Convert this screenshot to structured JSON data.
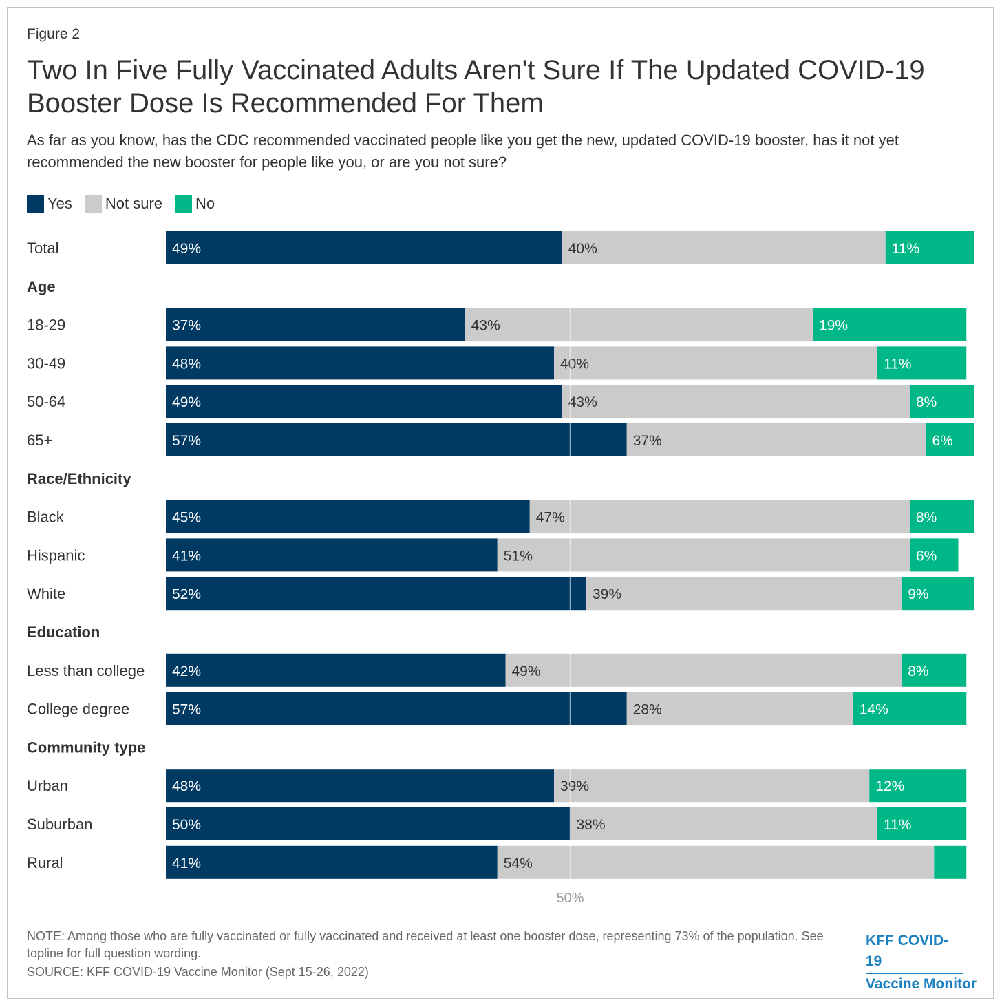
{
  "figure_label": "Figure 2",
  "title": "Two In Five Fully Vaccinated Adults Aren't Sure If The Updated COVID-19 Booster Dose Is Recommended For Them",
  "subtitle": "As far as you know, has the CDC recommended vaccinated people like you get the new, updated COVID-19 booster, has it not yet recommended the new booster for people like you, or are you not sure?",
  "legend": [
    {
      "label": "Yes",
      "color": "#003a63"
    },
    {
      "label": "Not sure",
      "color": "#cbcbcb"
    },
    {
      "label": "No",
      "color": "#00b887"
    }
  ],
  "chart_data": {
    "type": "bar",
    "orientation": "horizontal-stacked",
    "series_names": [
      "Yes",
      "Not sure",
      "No"
    ],
    "series_colors": [
      "#003a63",
      "#cbcbcb",
      "#00b887"
    ],
    "xlim": [
      0,
      100
    ],
    "x_ticks": [
      {
        "value": 50,
        "label": "50%"
      }
    ],
    "grid": false,
    "legend_position": "top-left",
    "rows": [
      {
        "kind": "bar",
        "label": "Total",
        "values": [
          49,
          40,
          11
        ],
        "labels": [
          "49%",
          "40%",
          "11%"
        ]
      },
      {
        "kind": "group",
        "label": "Age"
      },
      {
        "kind": "bar",
        "label": "18-29",
        "values": [
          37,
          43,
          19
        ],
        "labels": [
          "37%",
          "43%",
          "19%"
        ]
      },
      {
        "kind": "bar",
        "label": "30-49",
        "values": [
          48,
          40,
          11
        ],
        "labels": [
          "48%",
          "40%",
          "11%"
        ]
      },
      {
        "kind": "bar",
        "label": "50-64",
        "values": [
          49,
          43,
          8
        ],
        "labels": [
          "49%",
          "43%",
          "8%"
        ]
      },
      {
        "kind": "bar",
        "label": "65+",
        "values": [
          57,
          37,
          6
        ],
        "labels": [
          "57%",
          "37%",
          "6%"
        ]
      },
      {
        "kind": "group",
        "label": "Race/Ethnicity"
      },
      {
        "kind": "bar",
        "label": "Black",
        "values": [
          45,
          47,
          8
        ],
        "labels": [
          "45%",
          "47%",
          "8%"
        ]
      },
      {
        "kind": "bar",
        "label": "Hispanic",
        "values": [
          41,
          51,
          6
        ],
        "labels": [
          "41%",
          "51%",
          "6%"
        ]
      },
      {
        "kind": "bar",
        "label": "White",
        "values": [
          52,
          39,
          9
        ],
        "labels": [
          "52%",
          "39%",
          "9%"
        ]
      },
      {
        "kind": "group",
        "label": "Education"
      },
      {
        "kind": "bar",
        "label": "Less than college",
        "values": [
          42,
          49,
          8
        ],
        "labels": [
          "42%",
          "49%",
          "8%"
        ]
      },
      {
        "kind": "bar",
        "label": "College degree",
        "values": [
          57,
          28,
          14
        ],
        "labels": [
          "57%",
          "28%",
          "14%"
        ]
      },
      {
        "kind": "group",
        "label": "Community type"
      },
      {
        "kind": "bar",
        "label": "Urban",
        "values": [
          48,
          39,
          12
        ],
        "labels": [
          "48%",
          "39%",
          "12%"
        ]
      },
      {
        "kind": "bar",
        "label": "Suburban",
        "values": [
          50,
          38,
          11
        ],
        "labels": [
          "50%",
          "38%",
          "11%"
        ]
      },
      {
        "kind": "bar",
        "label": "Rural",
        "values": [
          41,
          54,
          4
        ],
        "labels": [
          "41%",
          "54%",
          ""
        ]
      }
    ]
  },
  "footer": {
    "note": "NOTE: Among those who are fully vaccinated or fully vaccinated and received at least one booster dose, representing 73% of the population. See topline for full question wording.",
    "source": "SOURCE: KFF COVID-19 Vaccine Monitor (Sept 15-26, 2022)",
    "brand_line1": "KFF COVID-19",
    "brand_line2": "Vaccine Monitor"
  }
}
